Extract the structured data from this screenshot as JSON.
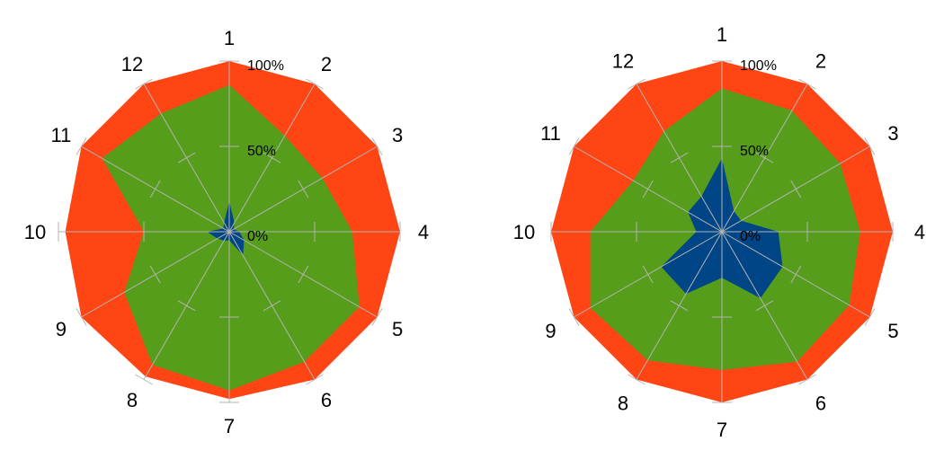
{
  "chart_data": [
    {
      "type": "radar",
      "title": "",
      "categories": [
        "1",
        "2",
        "3",
        "4",
        "5",
        "6",
        "7",
        "8",
        "9",
        "10",
        "11",
        "12"
      ],
      "ring_labels": [
        "0%",
        "50%",
        "100%"
      ],
      "ylim": [
        0,
        1
      ],
      "grid": true,
      "series": [
        {
          "color": "#ff4514",
          "values": [
            1.0,
            1.0,
            1.0,
            1.0,
            1.0,
            1.0,
            0.98,
            0.98,
            1.0,
            0.96,
            1.0,
            1.0
          ]
        },
        {
          "color": "#579d1c",
          "values": [
            0.86,
            0.65,
            0.63,
            0.72,
            0.88,
            0.88,
            0.93,
            0.9,
            0.71,
            0.5,
            0.86,
            0.8
          ]
        },
        {
          "color": "#004586",
          "values": [
            0.18,
            0.06,
            0.03,
            0.06,
            0.1,
            0.16,
            0.05,
            0.06,
            0.08,
            0.13,
            0.04,
            0.06
          ]
        }
      ]
    },
    {
      "type": "radar",
      "title": "",
      "categories": [
        "1",
        "2",
        "3",
        "4",
        "5",
        "6",
        "7",
        "8",
        "9",
        "10",
        "11",
        "12"
      ],
      "ring_labels": [
        "0%",
        "50%",
        "100%"
      ],
      "ylim": [
        0,
        1
      ],
      "grid": true,
      "series": [
        {
          "color": "#ff4514",
          "values": [
            1.0,
            1.0,
            1.0,
            1.0,
            1.0,
            1.0,
            1.0,
            1.0,
            1.0,
            1.0,
            1.0,
            1.0
          ]
        },
        {
          "color": "#579d1c",
          "values": [
            0.84,
            0.82,
            0.8,
            0.81,
            0.86,
            0.88,
            0.81,
            0.87,
            0.89,
            0.77,
            0.6,
            0.68
          ]
        },
        {
          "color": "#004586",
          "values": [
            0.43,
            0.14,
            0.13,
            0.33,
            0.41,
            0.45,
            0.27,
            0.42,
            0.41,
            0.15,
            0.23,
            0.24
          ]
        }
      ]
    }
  ]
}
